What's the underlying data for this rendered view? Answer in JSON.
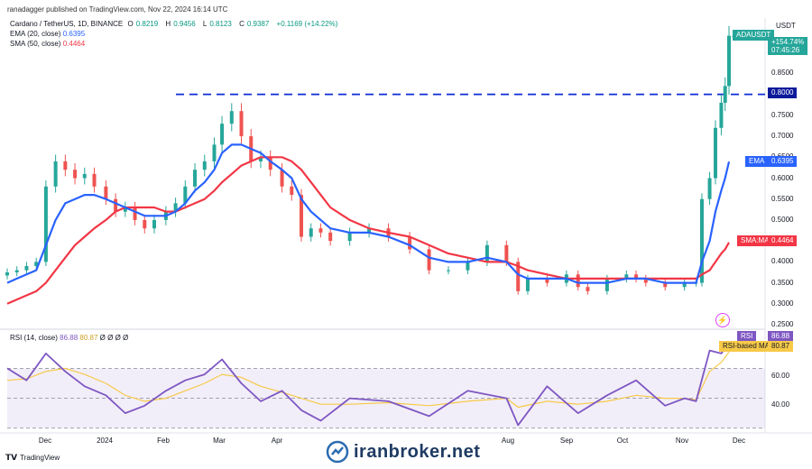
{
  "header": {
    "publisher": "ranadagger published on TradingView.com, Nov 22, 2024 16:14 UTC"
  },
  "legend": {
    "symbol": "Cardano / TetherUS, 1D, BINANCE",
    "ohlc": [
      {
        "label": "O",
        "value": "0.8219"
      },
      {
        "label": "H",
        "value": "0.9456"
      },
      {
        "label": "L",
        "value": "0.8123"
      },
      {
        "label": "C",
        "value": "0.9387"
      }
    ],
    "change": "+0.1169 (+14.22%)",
    "ema_label": "EMA (20, close)",
    "ema_value": "0.6395",
    "sma_label": "SMA (50, close)",
    "sma_value": "0.4464",
    "rsi_label": "RSI (14, close)",
    "rsi_value": "86.88",
    "rsi_ma_value": "80.87",
    "rsi_zeros": "Ø Ø Ø Ø"
  },
  "price_axis": {
    "currency": "USDT",
    "ticks": [
      "0.8500",
      "0.7500",
      "0.7000",
      "0.6500",
      "0.6000",
      "0.5500",
      "0.5000",
      "0.4000",
      "0.3500",
      "0.3000",
      "0.2500"
    ],
    "tags": {
      "symbol": "ADAUSDT",
      "last_change": "+154.74%",
      "countdown": "07:45:26",
      "level": "0.8000",
      "ema_name": "EMA",
      "ema_value": "0.6395",
      "sma_name": "SMA:MA",
      "sma_value": "0.4464"
    }
  },
  "rsi_axis": {
    "ticks": [
      "60.00",
      "40.00"
    ],
    "rsi_name": "RSI",
    "rsi_value": "86.88",
    "ma_name": "RSI-based MA",
    "ma_value": "80.87"
  },
  "x_axis": {
    "ticks": [
      "Dec",
      "2024",
      "Feb",
      "Mar",
      "Apr",
      "Aug",
      "Sep",
      "Oct",
      "Nov",
      "Dec"
    ]
  },
  "footer": {
    "brand": "TradingView",
    "watermark": "iranbroker.net"
  },
  "colors": {
    "up": "#26a69a",
    "down": "#ef5350",
    "ema": "#2962ff",
    "sma": "#f23645",
    "rsi": "#7e57c2",
    "rsi_ma": "#f7c948",
    "level": "#0d2bd6"
  },
  "chart_data": [
    {
      "type": "candlestick",
      "title": "Cardano / TetherUS, 1D, BINANCE",
      "x": [
        "2023-11-15",
        "2023-11-20",
        "2023-11-25",
        "2023-11-30",
        "2023-12-05",
        "2023-12-10",
        "2023-12-15",
        "2023-12-20",
        "2023-12-25",
        "2023-12-30",
        "2024-01-05",
        "2024-01-10",
        "2024-01-15",
        "2024-01-20",
        "2024-01-25",
        "2024-01-30",
        "2024-02-05",
        "2024-02-10",
        "2024-02-15",
        "2024-02-20",
        "2024-02-25",
        "2024-03-01",
        "2024-03-05",
        "2024-03-10",
        "2024-03-15",
        "2024-03-20",
        "2024-03-25",
        "2024-03-30",
        "2024-04-05",
        "2024-04-10",
        "2024-04-15",
        "2024-04-20",
        "2024-04-25",
        "2024-04-30",
        "2024-05-10",
        "2024-05-20",
        "2024-05-30",
        "2024-06-10",
        "2024-06-20",
        "2024-06-30",
        "2024-07-10",
        "2024-07-20",
        "2024-07-30",
        "2024-08-05",
        "2024-08-10",
        "2024-08-20",
        "2024-08-30",
        "2024-09-05",
        "2024-09-10",
        "2024-09-20",
        "2024-09-30",
        "2024-10-05",
        "2024-10-10",
        "2024-10-20",
        "2024-10-30",
        "2024-11-05",
        "2024-11-08",
        "2024-11-12",
        "2024-11-15",
        "2024-11-18",
        "2024-11-20",
        "2024-11-22"
      ],
      "series": [
        {
          "name": "Price",
          "values": [
            0.375,
            0.38,
            0.39,
            0.4,
            0.58,
            0.64,
            0.62,
            0.6,
            0.61,
            0.58,
            0.55,
            0.52,
            0.53,
            0.5,
            0.48,
            0.5,
            0.52,
            0.54,
            0.58,
            0.62,
            0.64,
            0.68,
            0.73,
            0.76,
            0.7,
            0.64,
            0.65,
            0.62,
            0.58,
            0.56,
            0.46,
            0.48,
            0.47,
            0.45,
            0.47,
            0.48,
            0.46,
            0.43,
            0.38,
            0.38,
            0.4,
            0.44,
            0.4,
            0.33,
            0.36,
            0.35,
            0.37,
            0.34,
            0.33,
            0.36,
            0.37,
            0.36,
            0.35,
            0.34,
            0.35,
            0.35,
            0.55,
            0.6,
            0.72,
            0.78,
            0.82,
            0.94
          ]
        },
        {
          "name": "EMA (20, close)",
          "values": [
            0.35,
            0.36,
            0.37,
            0.38,
            0.44,
            0.5,
            0.54,
            0.55,
            0.56,
            0.56,
            0.55,
            0.54,
            0.53,
            0.52,
            0.51,
            0.51,
            0.51,
            0.52,
            0.54,
            0.57,
            0.59,
            0.62,
            0.66,
            0.68,
            0.68,
            0.67,
            0.66,
            0.64,
            0.62,
            0.6,
            0.55,
            0.52,
            0.5,
            0.48,
            0.47,
            0.47,
            0.46,
            0.44,
            0.41,
            0.4,
            0.4,
            0.41,
            0.4,
            0.37,
            0.36,
            0.36,
            0.36,
            0.35,
            0.35,
            0.35,
            0.36,
            0.36,
            0.36,
            0.35,
            0.35,
            0.35,
            0.4,
            0.45,
            0.52,
            0.57,
            0.6,
            0.6395
          ]
        },
        {
          "name": "SMA (50, close)",
          "values": [
            0.3,
            0.31,
            0.32,
            0.33,
            0.35,
            0.38,
            0.41,
            0.44,
            0.46,
            0.48,
            0.5,
            0.52,
            0.53,
            0.53,
            0.53,
            0.53,
            0.52,
            0.52,
            0.53,
            0.54,
            0.55,
            0.57,
            0.59,
            0.61,
            0.63,
            0.64,
            0.65,
            0.65,
            0.65,
            0.64,
            0.62,
            0.59,
            0.56,
            0.53,
            0.5,
            0.48,
            0.47,
            0.46,
            0.44,
            0.42,
            0.41,
            0.4,
            0.4,
            0.39,
            0.38,
            0.37,
            0.36,
            0.36,
            0.36,
            0.36,
            0.36,
            0.36,
            0.36,
            0.36,
            0.36,
            0.36,
            0.37,
            0.38,
            0.4,
            0.42,
            0.43,
            0.4464
          ]
        }
      ],
      "annotations": [
        {
          "type": "horizontal-line",
          "value": 0.8,
          "style": "dashed"
        }
      ],
      "ylim": [
        0.25,
        0.95
      ]
    },
    {
      "type": "line",
      "title": "RSI (14, close)",
      "x": [
        "2023-11-15",
        "2023-11-25",
        "2023-12-05",
        "2023-12-15",
        "2023-12-25",
        "2024-01-05",
        "2024-01-15",
        "2024-01-25",
        "2024-02-05",
        "2024-02-15",
        "2024-02-25",
        "2024-03-05",
        "2024-03-15",
        "2024-03-25",
        "2024-04-05",
        "2024-04-15",
        "2024-04-25",
        "2024-05-10",
        "2024-05-30",
        "2024-06-20",
        "2024-07-10",
        "2024-07-30",
        "2024-08-05",
        "2024-08-20",
        "2024-09-05",
        "2024-09-20",
        "2024-10-05",
        "2024-10-20",
        "2024-10-30",
        "2024-11-05",
        "2024-11-12",
        "2024-11-18",
        "2024-11-22"
      ],
      "series": [
        {
          "name": "RSI",
          "values": [
            70,
            62,
            80,
            68,
            58,
            52,
            40,
            45,
            55,
            62,
            66,
            76,
            60,
            48,
            55,
            42,
            35,
            50,
            48,
            38,
            55,
            50,
            32,
            58,
            40,
            52,
            62,
            45,
            50,
            48,
            82,
            80,
            86.88
          ]
        },
        {
          "name": "RSI-based MA",
          "values": [
            62,
            63,
            68,
            70,
            66,
            60,
            52,
            48,
            50,
            55,
            60,
            66,
            64,
            58,
            54,
            50,
            46,
            46,
            47,
            45,
            48,
            50,
            44,
            48,
            46,
            48,
            52,
            50,
            50,
            49,
            68,
            74,
            80.87
          ]
        }
      ],
      "ylim": [
        28,
        92
      ]
    }
  ]
}
